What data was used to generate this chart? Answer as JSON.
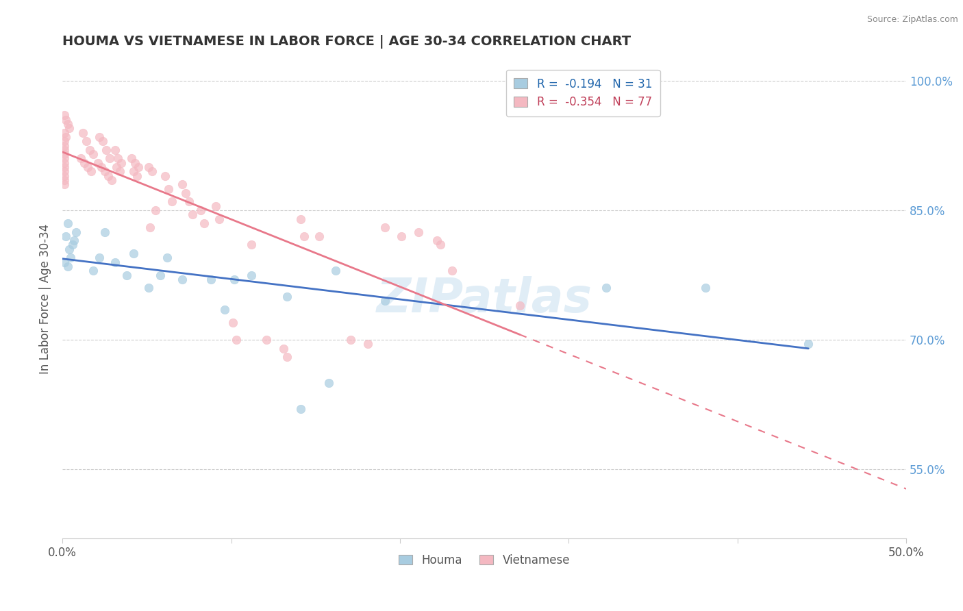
{
  "title": "HOUMA VS VIETNAMESE IN LABOR FORCE | AGE 30-34 CORRELATION CHART",
  "source": "Source: ZipAtlas.com",
  "ylabel": "In Labor Force | Age 30-34",
  "xlim": [
    0.0,
    0.5
  ],
  "ylim": [
    0.47,
    1.025
  ],
  "xticks": [
    0.0,
    0.1,
    0.2,
    0.3,
    0.4,
    0.5
  ],
  "xticklabels": [
    "0.0%",
    "",
    "",
    "",
    "",
    "50.0%"
  ],
  "ytick_vals": [
    0.55,
    0.7,
    0.85,
    1.0
  ],
  "ytick_labels": [
    "55.0%",
    "70.0%",
    "85.0%",
    "100.0%"
  ],
  "houma_color": "#a8cce0",
  "vietnamese_color": "#f4b8c1",
  "houma_line_color": "#4472c4",
  "vietnamese_line_color": "#e8788a",
  "houma_R": -0.194,
  "houma_N": 31,
  "vietnamese_R": -0.354,
  "vietnamese_N": 77,
  "watermark": "ZIPatlas",
  "legend_labels": [
    "Houma",
    "Vietnamese"
  ],
  "houma_x": [
    0.003,
    0.096,
    0.005,
    0.002,
    0.001,
    0.004,
    0.006,
    0.008,
    0.003,
    0.007,
    0.018,
    0.022,
    0.025,
    0.031,
    0.038,
    0.042,
    0.051,
    0.058,
    0.062,
    0.071,
    0.088,
    0.102,
    0.112,
    0.133,
    0.141,
    0.158,
    0.162,
    0.191,
    0.322,
    0.381,
    0.442
  ],
  "houma_y": [
    0.835,
    0.735,
    0.795,
    0.82,
    0.79,
    0.805,
    0.81,
    0.825,
    0.785,
    0.815,
    0.78,
    0.795,
    0.825,
    0.79,
    0.775,
    0.8,
    0.76,
    0.775,
    0.795,
    0.77,
    0.77,
    0.77,
    0.775,
    0.75,
    0.62,
    0.65,
    0.78,
    0.745,
    0.76,
    0.76,
    0.695
  ],
  "vietnamese_x": [
    0.001,
    0.002,
    0.003,
    0.004,
    0.001,
    0.002,
    0.001,
    0.001,
    0.001,
    0.001,
    0.001,
    0.001,
    0.001,
    0.001,
    0.001,
    0.001,
    0.001,
    0.012,
    0.014,
    0.016,
    0.018,
    0.011,
    0.013,
    0.015,
    0.017,
    0.022,
    0.024,
    0.026,
    0.028,
    0.021,
    0.023,
    0.025,
    0.027,
    0.029,
    0.031,
    0.033,
    0.035,
    0.032,
    0.034,
    0.041,
    0.043,
    0.045,
    0.042,
    0.044,
    0.051,
    0.053,
    0.055,
    0.052,
    0.061,
    0.063,
    0.065,
    0.071,
    0.073,
    0.075,
    0.077,
    0.082,
    0.084,
    0.091,
    0.093,
    0.101,
    0.103,
    0.112,
    0.121,
    0.131,
    0.133,
    0.141,
    0.143,
    0.152,
    0.171,
    0.181,
    0.191,
    0.201,
    0.211,
    0.222,
    0.224,
    0.231,
    0.271
  ],
  "vietnamese_y": [
    0.96,
    0.955,
    0.95,
    0.945,
    0.94,
    0.935,
    0.93,
    0.925,
    0.92,
    0.915,
    0.91,
    0.905,
    0.9,
    0.895,
    0.89,
    0.885,
    0.88,
    0.94,
    0.93,
    0.92,
    0.915,
    0.91,
    0.905,
    0.9,
    0.895,
    0.935,
    0.93,
    0.92,
    0.91,
    0.905,
    0.9,
    0.895,
    0.89,
    0.885,
    0.92,
    0.91,
    0.905,
    0.9,
    0.895,
    0.91,
    0.905,
    0.9,
    0.895,
    0.89,
    0.9,
    0.895,
    0.85,
    0.83,
    0.89,
    0.875,
    0.86,
    0.88,
    0.87,
    0.86,
    0.845,
    0.85,
    0.835,
    0.855,
    0.84,
    0.72,
    0.7,
    0.81,
    0.7,
    0.69,
    0.68,
    0.84,
    0.82,
    0.82,
    0.7,
    0.695,
    0.83,
    0.82,
    0.825,
    0.815,
    0.81,
    0.78,
    0.74
  ]
}
